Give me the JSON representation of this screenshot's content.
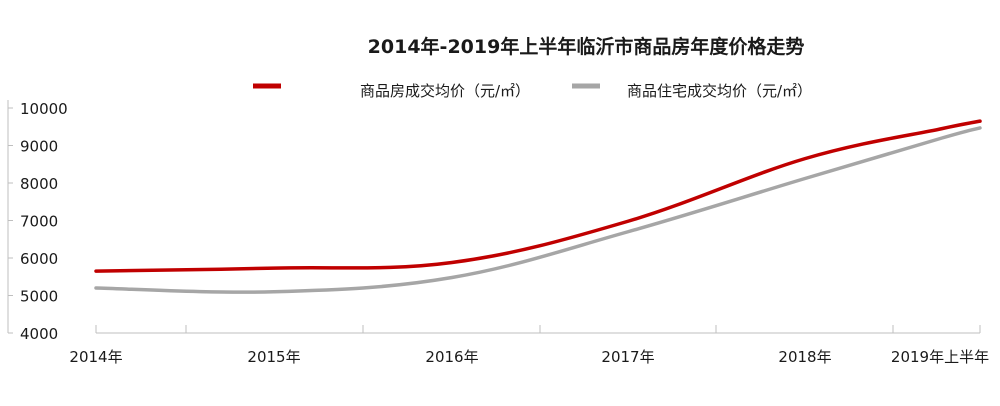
{
  "chart_data": {
    "type": "line",
    "title": "2014年-2019年上半年临沂市商品房年度价格走势",
    "categories": [
      "2014年",
      "2015年",
      "2016年",
      "2017年",
      "2018年",
      "2019年上半年"
    ],
    "series": [
      {
        "name": "商品房成交均价（元/㎡）",
        "color": "#c00000",
        "values": [
          5650,
          5730,
          5880,
          6980,
          8650,
          9450
        ]
      },
      {
        "name": "商品住宅成交均价（元/㎡）",
        "color": "#a6a6a6",
        "values": [
          5200,
          5100,
          5480,
          6700,
          8120,
          9200
        ]
      }
    ],
    "ylim": [
      4000,
      10000
    ],
    "yticks": [
      4000,
      5000,
      6000,
      7000,
      8000,
      9000,
      10000
    ],
    "grid": false,
    "legend_position": "top"
  }
}
